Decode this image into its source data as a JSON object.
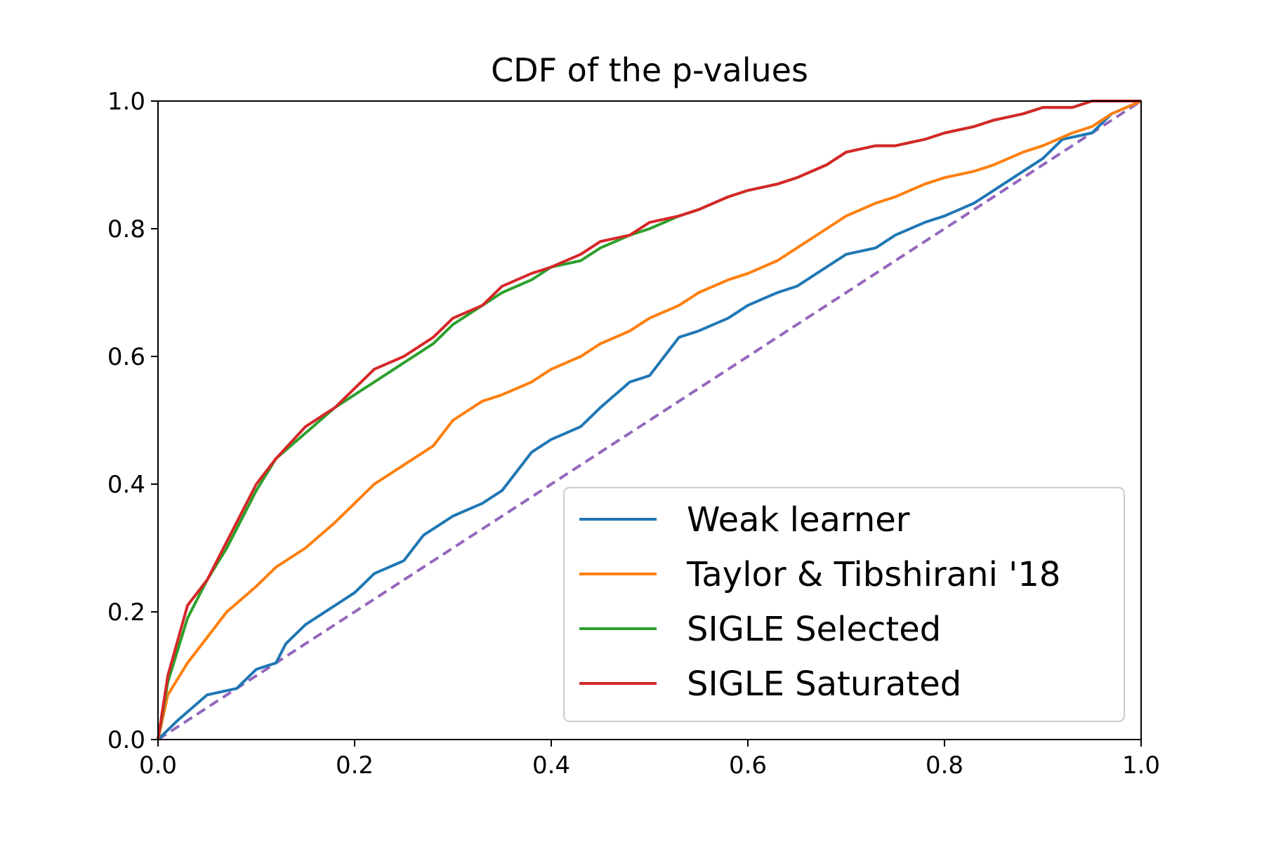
{
  "chart_data": {
    "type": "line",
    "title": "CDF of the p-values",
    "xlabel": "",
    "ylabel": "",
    "xlim": [
      0,
      1
    ],
    "ylim": [
      0,
      1
    ],
    "x_ticks": [
      "0.0",
      "0.2",
      "0.4",
      "0.6",
      "0.8",
      "1.0"
    ],
    "y_ticks": [
      "0.0",
      "0.2",
      "0.4",
      "0.6",
      "0.8",
      "1.0"
    ],
    "grid": false,
    "legend_position": "lower-right",
    "series": [
      {
        "name": "Weak learner",
        "color": "#1f77b4",
        "x": [
          0,
          0.02,
          0.05,
          0.08,
          0.1,
          0.12,
          0.13,
          0.15,
          0.18,
          0.2,
          0.22,
          0.25,
          0.27,
          0.3,
          0.33,
          0.35,
          0.38,
          0.4,
          0.43,
          0.45,
          0.48,
          0.5,
          0.53,
          0.55,
          0.58,
          0.6,
          0.63,
          0.65,
          0.67,
          0.7,
          0.73,
          0.75,
          0.78,
          0.8,
          0.83,
          0.85,
          0.88,
          0.9,
          0.92,
          0.95,
          0.97,
          1.0
        ],
        "y": [
          0,
          0.03,
          0.07,
          0.08,
          0.11,
          0.12,
          0.15,
          0.18,
          0.21,
          0.23,
          0.26,
          0.28,
          0.32,
          0.35,
          0.37,
          0.39,
          0.45,
          0.47,
          0.49,
          0.52,
          0.56,
          0.57,
          0.63,
          0.64,
          0.66,
          0.68,
          0.7,
          0.71,
          0.73,
          0.76,
          0.77,
          0.79,
          0.81,
          0.82,
          0.84,
          0.86,
          0.89,
          0.91,
          0.94,
          0.95,
          0.98,
          1.0
        ]
      },
      {
        "name": "Taylor & Tibshirani '18",
        "color": "#ff7f0e",
        "x": [
          0,
          0.01,
          0.03,
          0.05,
          0.07,
          0.1,
          0.12,
          0.15,
          0.18,
          0.2,
          0.22,
          0.25,
          0.28,
          0.3,
          0.33,
          0.35,
          0.38,
          0.4,
          0.43,
          0.45,
          0.48,
          0.5,
          0.53,
          0.55,
          0.58,
          0.6,
          0.63,
          0.65,
          0.68,
          0.7,
          0.73,
          0.75,
          0.78,
          0.8,
          0.83,
          0.85,
          0.88,
          0.9,
          0.93,
          0.95,
          0.97,
          1.0
        ],
        "y": [
          0,
          0.07,
          0.12,
          0.16,
          0.2,
          0.24,
          0.27,
          0.3,
          0.34,
          0.37,
          0.4,
          0.43,
          0.46,
          0.5,
          0.53,
          0.54,
          0.56,
          0.58,
          0.6,
          0.62,
          0.64,
          0.66,
          0.68,
          0.7,
          0.72,
          0.73,
          0.75,
          0.77,
          0.8,
          0.82,
          0.84,
          0.85,
          0.87,
          0.88,
          0.89,
          0.9,
          0.92,
          0.93,
          0.95,
          0.96,
          0.98,
          1.0
        ]
      },
      {
        "name": "SIGLE Selected",
        "color": "#2ca02c",
        "x": [
          0,
          0.01,
          0.03,
          0.05,
          0.07,
          0.1,
          0.12,
          0.15,
          0.18,
          0.2,
          0.22,
          0.25,
          0.28,
          0.3,
          0.33,
          0.35,
          0.38,
          0.4,
          0.43,
          0.45,
          0.48,
          0.5,
          0.53,
          0.55,
          0.58,
          0.6,
          0.63,
          0.65,
          0.68,
          0.7,
          0.73,
          0.75,
          0.78,
          0.8,
          0.83,
          0.85,
          0.88,
          0.9,
          0.93,
          0.95,
          0.98,
          1.0
        ],
        "y": [
          0,
          0.09,
          0.19,
          0.25,
          0.3,
          0.39,
          0.44,
          0.48,
          0.52,
          0.54,
          0.56,
          0.59,
          0.62,
          0.65,
          0.68,
          0.7,
          0.72,
          0.74,
          0.75,
          0.77,
          0.79,
          0.8,
          0.82,
          0.83,
          0.85,
          0.86,
          0.87,
          0.88,
          0.9,
          0.92,
          0.93,
          0.93,
          0.94,
          0.95,
          0.96,
          0.97,
          0.98,
          0.99,
          0.99,
          1.0,
          1.0,
          1.0
        ]
      },
      {
        "name": "SIGLE Saturated",
        "color": "#d62728",
        "x": [
          0,
          0.01,
          0.03,
          0.05,
          0.07,
          0.1,
          0.12,
          0.15,
          0.18,
          0.2,
          0.22,
          0.25,
          0.28,
          0.3,
          0.33,
          0.35,
          0.38,
          0.4,
          0.43,
          0.45,
          0.48,
          0.5,
          0.53,
          0.55,
          0.58,
          0.6,
          0.63,
          0.65,
          0.68,
          0.7,
          0.73,
          0.75,
          0.78,
          0.8,
          0.83,
          0.85,
          0.88,
          0.9,
          0.93,
          0.95,
          0.98,
          1.0
        ],
        "y": [
          0,
          0.1,
          0.21,
          0.25,
          0.31,
          0.4,
          0.44,
          0.49,
          0.52,
          0.55,
          0.58,
          0.6,
          0.63,
          0.66,
          0.68,
          0.71,
          0.73,
          0.74,
          0.76,
          0.78,
          0.79,
          0.81,
          0.82,
          0.83,
          0.85,
          0.86,
          0.87,
          0.88,
          0.9,
          0.92,
          0.93,
          0.93,
          0.94,
          0.95,
          0.96,
          0.97,
          0.98,
          0.99,
          0.99,
          1.0,
          1.0,
          1.0
        ]
      }
    ],
    "reference_line": {
      "x": [
        0,
        1
      ],
      "y": [
        0,
        1
      ],
      "color": "#9467bd",
      "style": "dashed"
    }
  }
}
